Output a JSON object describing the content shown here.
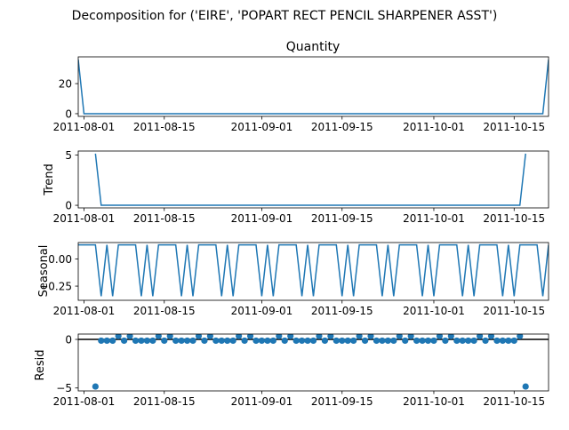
{
  "figure": {
    "suptitle": "Decomposition for ('EIRE', 'POPART RECT PENCIL SHARPENER ASST')"
  },
  "colors": {
    "series": "#1f77b4",
    "axis": "#000000",
    "zero_line": "#000000"
  },
  "chart_data": [
    {
      "type": "line",
      "title": "Quantity",
      "ylabel": "",
      "xlim": [
        "2011-07-31",
        "2011-10-21"
      ],
      "ylim": [
        -1.8,
        37.8
      ],
      "x_ticks": [
        "2011-08-01",
        "2011-08-15",
        "2011-09-01",
        "2011-09-15",
        "2011-10-01",
        "2011-10-15"
      ],
      "y_ticks": [
        0,
        20
      ],
      "series": [
        {
          "x": [
            "2011-07-31",
            "2011-08-01",
            "2011-10-19",
            "2011-10-20",
            "2011-10-21"
          ],
          "y": [
            36,
            0,
            0,
            0,
            36
          ]
        }
      ]
    },
    {
      "type": "line",
      "title": "",
      "ylabel": "Trend",
      "xlim": [
        "2011-07-31",
        "2011-10-21"
      ],
      "ylim": [
        -0.26,
        5.4
      ],
      "x_ticks": [
        "2011-08-01",
        "2011-08-15",
        "2011-09-01",
        "2011-09-15",
        "2011-10-01",
        "2011-10-15"
      ],
      "y_ticks": [
        0,
        5
      ],
      "series": [
        {
          "x": [
            "2011-08-03",
            "2011-08-04",
            "2011-10-16",
            "2011-10-17"
          ],
          "y": [
            5.14,
            0,
            0,
            5.14
          ]
        }
      ]
    },
    {
      "type": "line",
      "title": "",
      "ylabel": "Seasonal",
      "xlim": [
        "2011-07-31",
        "2011-10-21"
      ],
      "ylim": [
        -0.38,
        0.15
      ],
      "x_ticks": [
        "2011-08-01",
        "2011-08-15",
        "2011-09-01",
        "2011-09-15",
        "2011-10-01",
        "2011-10-15"
      ],
      "y_ticks": [
        0.0,
        -0.25
      ],
      "y_tick_labels": [
        "0.00",
        "−0.25"
      ],
      "weekly_pattern": [
        0.1286,
        0.1286,
        0.1286,
        0.1286,
        -0.3424,
        0.1286,
        -0.3424
      ],
      "series_start": "2011-07-31"
    },
    {
      "type": "scatter",
      "title": "",
      "ylabel": "Resid",
      "xlim": [
        "2011-07-31",
        "2011-10-21"
      ],
      "ylim": [
        -5.3,
        0.55
      ],
      "x_ticks": [
        "2011-08-01",
        "2011-08-15",
        "2011-09-01",
        "2011-09-15",
        "2011-10-01",
        "2011-10-15"
      ],
      "y_ticks": [
        0,
        -5
      ],
      "y_tick_labels": [
        "0",
        "−5"
      ],
      "zero_line": 0,
      "outliers": [
        {
          "x": "2011-08-03",
          "y": -4.85
        },
        {
          "x": "2011-10-17",
          "y": -4.85
        }
      ],
      "range": [
        "2011-08-03",
        "2011-10-17"
      ],
      "base_values": [
        -0.13,
        0.34
      ]
    }
  ]
}
